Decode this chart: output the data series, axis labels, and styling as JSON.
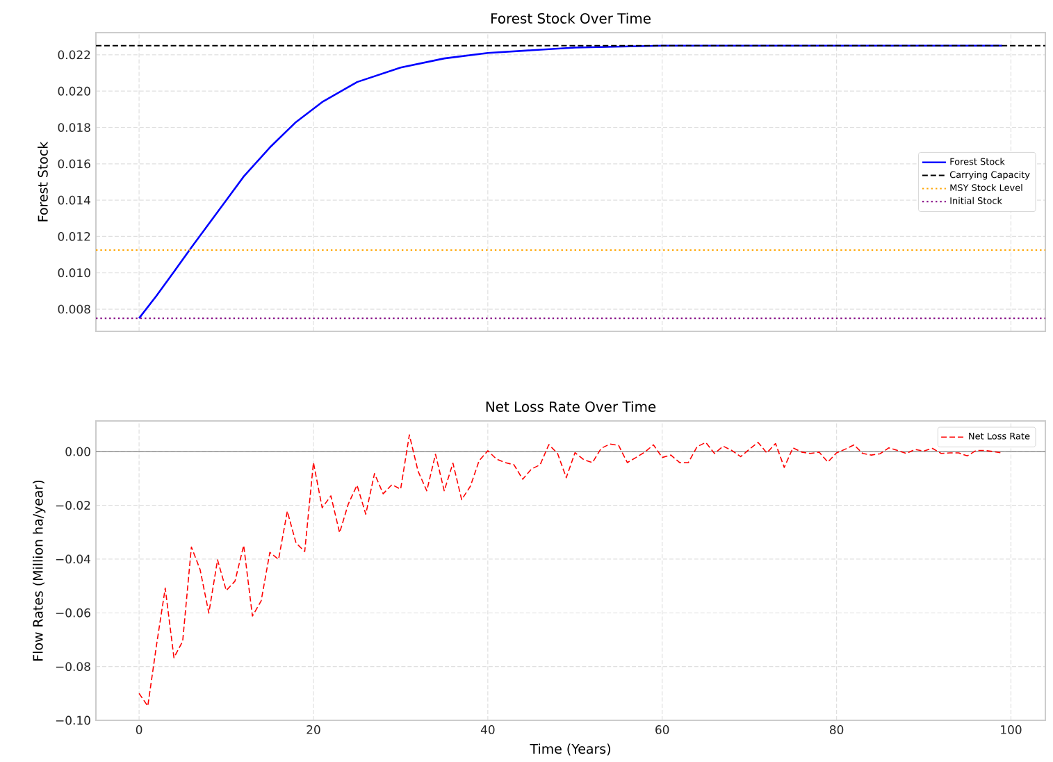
{
  "chart_data": [
    {
      "type": "line",
      "title": "Forest Stock Over Time",
      "ylabel": "Forest Stock",
      "xlim": [
        -4.95,
        103.95
      ],
      "xticks": [
        0,
        20,
        40,
        60,
        80,
        100
      ],
      "ylim": [
        0.00678,
        0.02322
      ],
      "yticks": [
        {
          "value": 0.008,
          "label": "0.008"
        },
        {
          "value": 0.01,
          "label": "0.010"
        },
        {
          "value": 0.012,
          "label": "0.012"
        },
        {
          "value": 0.014,
          "label": "0.014"
        },
        {
          "value": 0.016,
          "label": "0.016"
        },
        {
          "value": 0.018,
          "label": "0.018"
        },
        {
          "value": 0.02,
          "label": "0.020"
        },
        {
          "value": 0.022,
          "label": "0.022"
        }
      ],
      "tick_labels": "y",
      "grid": true,
      "legend": "center right",
      "series": [
        {
          "name": "Forest Stock",
          "color": "#0000ff",
          "line_style": "solid",
          "x": [
            0,
            2,
            4,
            6,
            8,
            10,
            12,
            15,
            18,
            21,
            25,
            30,
            35,
            40,
            50,
            60,
            70,
            99
          ],
          "values": [
            0.0075,
            0.00874,
            0.01006,
            0.0114,
            0.0127,
            0.014,
            0.0153,
            0.0169,
            0.0183,
            0.0194,
            0.0205,
            0.0213,
            0.0218,
            0.0221,
            0.0224,
            0.0225,
            0.0225,
            0.0225
          ]
        }
      ],
      "ref_lines": [
        {
          "axis": "y",
          "value": 0.0225,
          "label": "Carrying Capacity",
          "color": "#000000",
          "line_style": "dashed"
        },
        {
          "axis": "y",
          "value": 0.01125,
          "label": "MSY Stock Level",
          "color": "#ffa500",
          "line_style": "dotted"
        },
        {
          "axis": "y",
          "value": 0.0075,
          "label": "Initial Stock",
          "color": "#800080",
          "line_style": "dotted"
        }
      ]
    },
    {
      "type": "line",
      "title": "Net Loss Rate Over Time",
      "xlabel": "Time (Years)",
      "ylabel": "Flow Rates (Million ha/year)",
      "xlim": [
        -4.95,
        103.95
      ],
      "xticks": [
        0,
        20,
        40,
        60,
        80,
        100
      ],
      "ylim": [
        -0.1,
        0.0114
      ],
      "yticks": [
        {
          "value": -0.1,
          "label": "−0.10"
        },
        {
          "value": -0.08,
          "label": "−0.08"
        },
        {
          "value": -0.06,
          "label": "−0.06"
        },
        {
          "value": -0.04,
          "label": "−0.04"
        },
        {
          "value": -0.02,
          "label": "−0.02"
        },
        {
          "value": 0,
          "label": "0.00"
        }
      ],
      "grid": true,
      "legend": "top right",
      "series": [
        {
          "name": "Net Loss Rate",
          "color": "#ff0000",
          "line_style": "dashed",
          "x": [
            0,
            1,
            2,
            3,
            4,
            5,
            6,
            7,
            8,
            9,
            10,
            11,
            12,
            13,
            14,
            15,
            16,
            17,
            18,
            19,
            20,
            21,
            22,
            23,
            24,
            25,
            26,
            27,
            28,
            29,
            30,
            31,
            32,
            33,
            34,
            35,
            36,
            37,
            38,
            39,
            40,
            41,
            42,
            43,
            44,
            45,
            46,
            47,
            48,
            49,
            50,
            51,
            52,
            53,
            54,
            55,
            56,
            57,
            58,
            59,
            60,
            61,
            62,
            63,
            64,
            65,
            66,
            67,
            68,
            69,
            70,
            71,
            72,
            73,
            74,
            75,
            76,
            77,
            78,
            79,
            80,
            81,
            82,
            83,
            84,
            85,
            86,
            87,
            88,
            89,
            90,
            91,
            92,
            93,
            94,
            95,
            96,
            97,
            98,
            99
          ],
          "values": [
            -0.09,
            -0.0947,
            -0.072,
            -0.0508,
            -0.0767,
            -0.0706,
            -0.0355,
            -0.0439,
            -0.0601,
            -0.0403,
            -0.0517,
            -0.0482,
            -0.0349,
            -0.0612,
            -0.0556,
            -0.0375,
            -0.0401,
            -0.0222,
            -0.034,
            -0.0372,
            -0.0041,
            -0.0209,
            -0.0165,
            -0.0302,
            -0.0195,
            -0.0125,
            -0.0233,
            -0.0082,
            -0.0157,
            -0.0123,
            -0.014,
            0.0062,
            -0.0073,
            -0.0146,
            -0.001,
            -0.0146,
            -0.0043,
            -0.0179,
            -0.0129,
            -0.0034,
            0.0003,
            -0.0028,
            -0.0041,
            -0.0049,
            -0.0103,
            -0.0065,
            -0.0049,
            0.0026,
            -0.0007,
            -0.0097,
            -0.0004,
            -0.003,
            -0.0041,
            0.0012,
            0.0028,
            0.0023,
            -0.0041,
            -0.0022,
            -0.0002,
            0.0025,
            -0.0022,
            -0.0013,
            -0.0041,
            -0.0041,
            0.0018,
            0.0034,
            -0.0007,
            0.002,
            0.0004,
            -0.0019,
            0.0009,
            0.0034,
            -0.0005,
            0.003,
            -0.0059,
            0.0014,
            -0.0002,
            -0.0007,
            -0.0002,
            -0.0039,
            -0.0005,
            0.0009,
            0.0025,
            -0.0007,
            -0.0013,
            -0.0008,
            0.0014,
            0.0004,
            -0.0007,
            0.0008,
            0.0002,
            0.0012,
            -0.0007,
            -0.0005,
            -0.0005,
            -0.0016,
            0.0004,
            0.0004,
            0.0,
            -0.0005
          ]
        }
      ],
      "ref_lines": [
        {
          "axis": "y",
          "value": 0,
          "color": "#808080",
          "line_style": "solid"
        }
      ]
    }
  ]
}
